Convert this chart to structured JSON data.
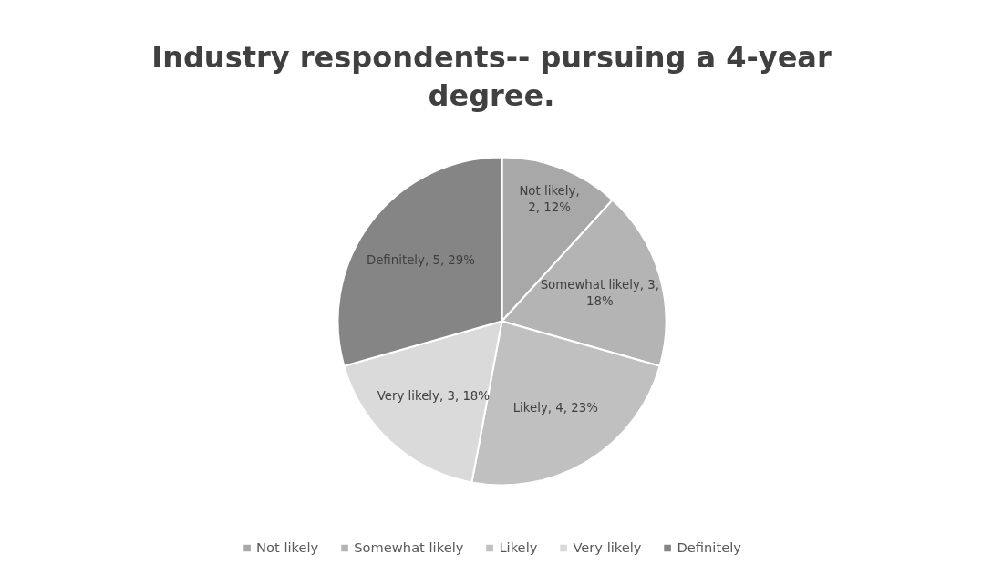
{
  "chart_data": {
    "type": "pie",
    "title": "Industry respondents-- pursuing a 4-year degree.",
    "categories": [
      "Not likely",
      "Somewhat likely",
      "Likely",
      "Very likely",
      "Definitely"
    ],
    "values": [
      2,
      3,
      4,
      3,
      5
    ],
    "colors": [
      "#a8a8a8",
      "#b4b4b4",
      "#c0c0c0",
      "#dadada",
      "#858585"
    ],
    "value_labels": [
      "Not likely, 2, 12%",
      "Somewhat likely, 3, 18%",
      "Likely, 4, 23%",
      "Very likely, 3, 18%",
      "Definitely, 5, 29%"
    ],
    "legend": "bottom"
  }
}
